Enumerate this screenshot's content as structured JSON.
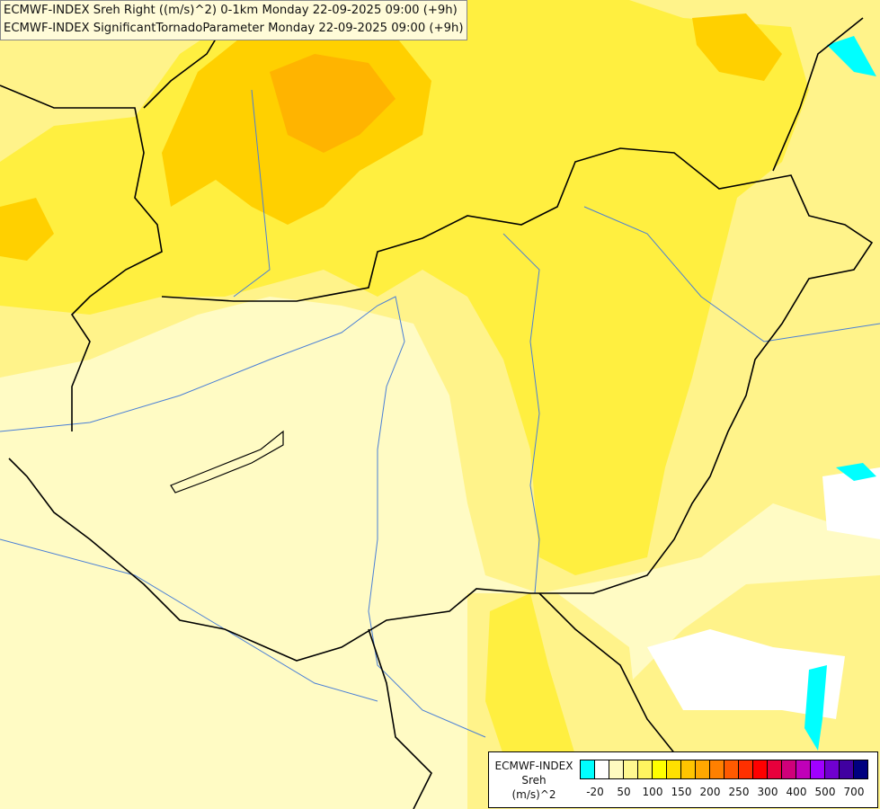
{
  "titles": [
    "ECMWF-INDEX Sreh Right ((m/s)^2) 0-1km Monday 22-09-2025 09:00 (+9h)",
    "ECMWF-INDEX SignificantTornadoParameter Monday 22-09-2025 09:00 (+9h)"
  ],
  "legend": {
    "model": "ECMWF-INDEX",
    "parameter": "Sreh",
    "unit": "(m/s)^2",
    "colors": [
      "#00ffff",
      "#ffffff",
      "#fffbc0",
      "#fff890",
      "#fff560",
      "#ffff00",
      "#ffe000",
      "#ffc400",
      "#ffa800",
      "#ff8000",
      "#ff5a00",
      "#ff3000",
      "#ff0000",
      "#e8003c",
      "#d0007a",
      "#c000b8",
      "#a000ff",
      "#7000d0",
      "#4000a0",
      "#000080"
    ],
    "ticks": [
      "-20",
      "50",
      "100",
      "150",
      "200",
      "250",
      "300",
      "400",
      "500",
      "700"
    ]
  },
  "map_colors": {
    "background": "#fffbc4",
    "light_yellow": "#fff38a",
    "yellow": "#ffef40",
    "gold": "#ffd000",
    "orange": "#ffb400",
    "border": "#000000",
    "river": "#4a7fd6"
  }
}
